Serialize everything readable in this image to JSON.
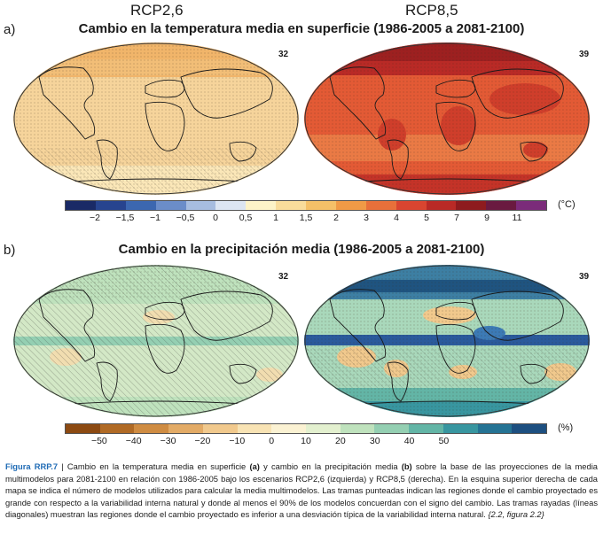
{
  "scenarios": {
    "left": "RCP2,6",
    "right": "RCP8,5"
  },
  "panel_a": {
    "letter": "a)",
    "title": "Cambio en la temperatura media en superficie (1986-2005 a 2081-2100)",
    "count_left": "32",
    "count_right": "39",
    "colorbar": {
      "unit": "(°C)",
      "colors": [
        "#1a2a66",
        "#27448f",
        "#3c67b0",
        "#6b8dc9",
        "#a7bde0",
        "#dce5f2",
        "#fdf3c8",
        "#f9dc9b",
        "#f5c068",
        "#f09a46",
        "#e8703a",
        "#d94530",
        "#b92a26",
        "#8e1b1e",
        "#6a1a40",
        "#7b2b7a"
      ],
      "ticks": [
        "−2",
        "−1,5",
        "−1",
        "−0,5",
        "0",
        "0,5",
        "1",
        "1,5",
        "2",
        "3",
        "4",
        "5",
        "7",
        "9",
        "11"
      ]
    }
  },
  "panel_b": {
    "letter": "b)",
    "title": "Cambio en la precipitación media (1986-2005 a 2081-2100)",
    "count_left": "32",
    "count_right": "39",
    "colorbar": {
      "unit": "(%)",
      "colors": [
        "#8c4a12",
        "#b06a25",
        "#cf8c42",
        "#e3ab66",
        "#f1c98d",
        "#f8e3b4",
        "#fbf2d3",
        "#e3f0cf",
        "#bfe2bd",
        "#94cfb2",
        "#63b5a6",
        "#3896a0",
        "#257394",
        "#1d4f80"
      ],
      "ticks": [
        "−50",
        "−40",
        "−30",
        "−20",
        "−10",
        "0",
        "10",
        "20",
        "30",
        "40",
        "50"
      ]
    }
  },
  "caption": {
    "fig_label": "Figura RRP.7",
    "text_1": " | Cambio en la temperatura media en superficie ",
    "bold_a": "(a)",
    "text_2": " y cambio en la precipitación media ",
    "bold_b": "(b)",
    "text_3": " sobre la base de las proyecciones de la media multimodelos para 2081-2100 en relación con 1986-2005 bajo los escenarios RCP2,6 (izquierda) y RCP8,5 (derecha). En la esquina superior derecha de cada mapa se indica el número de modelos utilizados para calcular la media multimodelos. Las tramas punteadas indican las regiones donde el cambio proyectado es grande con respecto a la variabilidad interna natural y donde al menos el 90% de los modelos concuerdan con el signo del cambio. Las tramas rayadas (líneas diagonales) muestran las regiones donde el cambio proyectado es inferior a una desviación típica de la variabilidad interna natural. ",
    "ref": "{2.2, figura 2.2}"
  }
}
